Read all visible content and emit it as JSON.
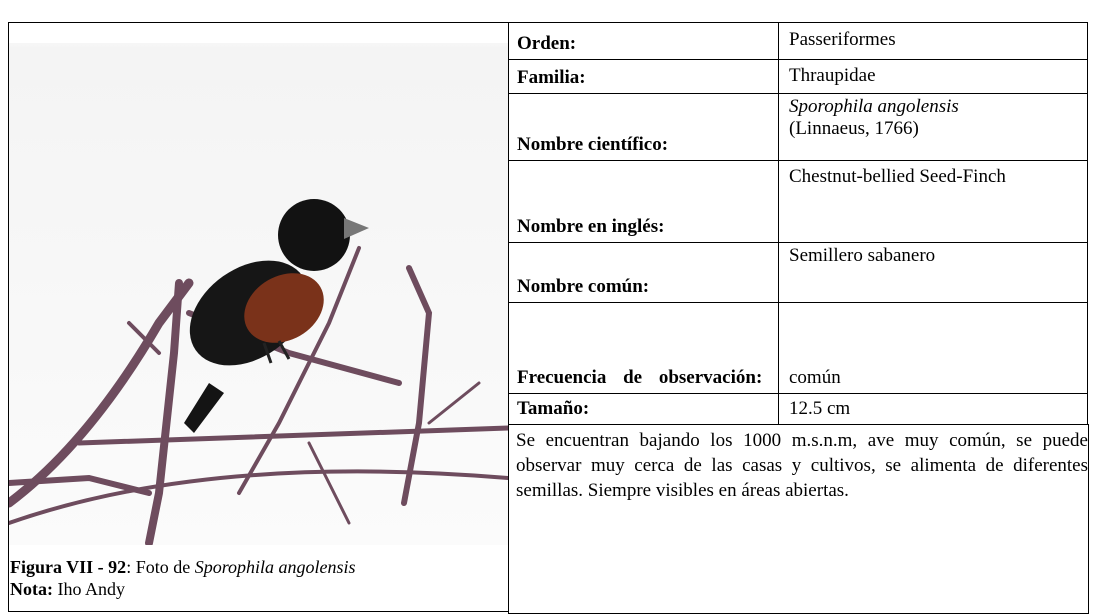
{
  "table": {
    "rows": [
      {
        "label": "Orden:",
        "value": "Passeriformes"
      },
      {
        "label": "Familia:",
        "value": "Thraupidae"
      },
      {
        "label": "Nombre científico:",
        "value": {
          "italic": "Sporophila angolensis",
          "plain": "(Linnaeus, 1766)"
        }
      },
      {
        "label": "Nombre en inglés:",
        "value": "Chestnut-bellied Seed-Finch"
      },
      {
        "label": "Nombre común:",
        "value": "Semillero sabanero"
      },
      {
        "label": "Frecuencia de observación:",
        "value": "común"
      },
      {
        "label": "Tamaño:",
        "value": "12.5 cm"
      }
    ]
  },
  "description": "Se encuentran bajando los 1000 m.s.n.m, ave muy común, se puede observar muy cerca de las casas y cultivos, se alimenta de diferentes semillas. Siempre visibles en áreas abiertas.",
  "caption": {
    "figure": "Figura VII - 92",
    "text": ": Foto de ",
    "species": "Sporophila angolensis"
  },
  "note": {
    "label": "Nota:",
    "text": "Iho Andy"
  }
}
